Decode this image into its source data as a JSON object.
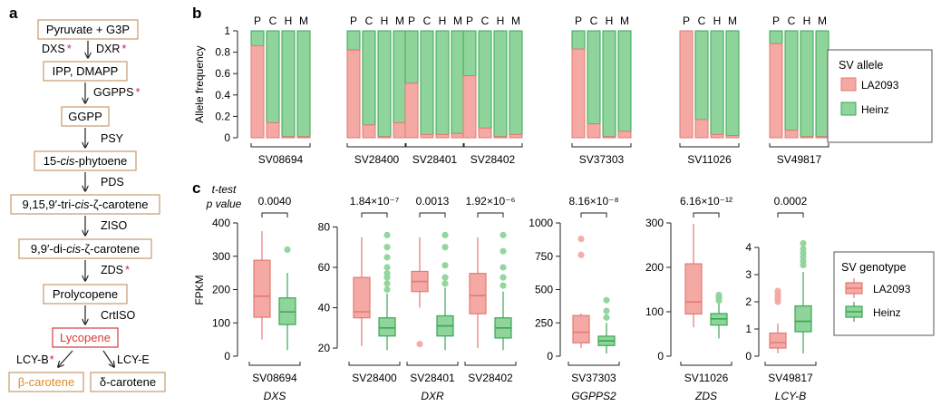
{
  "panel_labels": {
    "a": "a",
    "b": "b",
    "c": "c"
  },
  "pathway": {
    "nodes": [
      {
        "id": "pyr",
        "label": "Pyruvate + G3P",
        "style": "normal"
      },
      {
        "id": "ipp",
        "label": "IPP, DMAPP",
        "style": "normal"
      },
      {
        "id": "ggpp",
        "label": "GGPP",
        "style": "normal"
      },
      {
        "id": "phyt",
        "label_parts": [
          "15-",
          "cis",
          "-phytoene"
        ],
        "style": "normal"
      },
      {
        "id": "tri",
        "label_parts": [
          "9,15,9′-tri-",
          "cis",
          "-ζ-carotene"
        ],
        "style": "normal"
      },
      {
        "id": "di",
        "label_parts": [
          "9,9′-di-",
          "cis",
          "-ζ-carotene"
        ],
        "style": "normal"
      },
      {
        "id": "proly",
        "label": "Prolycopene",
        "style": "normal"
      },
      {
        "id": "lyc",
        "label": "Lycopene",
        "style": "red"
      },
      {
        "id": "beta",
        "label": "β-carotene",
        "style": "orange"
      },
      {
        "id": "delta",
        "label": "δ-carotene",
        "style": "normal"
      }
    ],
    "enzymes": {
      "dxs": "DXS",
      "dxr": "DXR",
      "ggpps": "GGPPS",
      "psy": "PSY",
      "pds": "PDS",
      "ziso": "ZISO",
      "zds": "ZDS",
      "crtiso": "CrtISO",
      "lcyb": "LCY-B",
      "lcye": "LCY-E"
    },
    "star": "*",
    "star_color": "#cc1f6a"
  },
  "colors": {
    "la2093": "#f4a9a4",
    "la2093_stroke": "#e27a74",
    "heinz": "#8fd49a",
    "heinz_stroke": "#3aa655",
    "lycopene_red": "#d83a3a",
    "beta_orange": "#e2892a",
    "node_border": "#c79a6e"
  },
  "allele_chart": {
    "type": "bar",
    "ylabel": "Allele frequency",
    "ylim": [
      0,
      1
    ],
    "yticks": [
      "0",
      "0.2",
      "0.4",
      "0.6",
      "0.8",
      "1"
    ],
    "tissue_labels": [
      "P",
      "C",
      "H",
      "M"
    ],
    "groups": [
      {
        "sv": "SV08694",
        "la2093": [
          0.86,
          0.14,
          0.01,
          0.01
        ]
      },
      {
        "sv": "SV28400",
        "la2093": [
          0.82,
          0.12,
          0.01,
          0.14
        ]
      },
      {
        "sv": "SV28401",
        "la2093": [
          0.51,
          0.03,
          0.03,
          0.04
        ]
      },
      {
        "sv": "SV28402",
        "la2093": [
          0.58,
          0.09,
          0.01,
          0.03
        ]
      },
      {
        "sv": "SV37303",
        "la2093": [
          0.83,
          0.13,
          0.01,
          0.06
        ]
      },
      {
        "sv": "SV11026",
        "la2093": [
          1.0,
          0.17,
          0.03,
          0.02
        ]
      },
      {
        "sv": "SV49817",
        "la2093": [
          0.88,
          0.07,
          0.01,
          0.01
        ]
      }
    ],
    "legend": {
      "title": "SV allele",
      "items": [
        "LA2093",
        "Heinz"
      ]
    }
  },
  "expression_chart": {
    "type": "box",
    "ylabel": "FPKM",
    "ttest_label": [
      "t-test",
      "p value"
    ],
    "legend": {
      "title": "SV genotype",
      "items": [
        "LA2093",
        "Heinz"
      ]
    },
    "panels": [
      {
        "id": "dxs",
        "yticks": [
          0,
          100,
          200,
          300,
          400
        ],
        "ylim": [
          0,
          400
        ],
        "gene": "DXS",
        "groups": [
          {
            "sv": "SV08694",
            "pval": "0.0040",
            "la2093": {
              "whislo": 50,
              "q1": 117,
              "med": 180,
              "q3": 288,
              "whishi": 375,
              "fliers": []
            },
            "heinz": {
              "whislo": 18,
              "q1": 95,
              "med": 133,
              "q3": 175,
              "whishi": 250,
              "fliers": [
                320
              ]
            }
          }
        ]
      },
      {
        "id": "dxr",
        "yticks": [
          20,
          40,
          60,
          80
        ],
        "ylim": [
          16,
          82
        ],
        "gene": "DXR",
        "groups": [
          {
            "sv": "SV28400",
            "pval": "1.84×10⁻⁷",
            "la2093": {
              "whislo": 21,
              "q1": 35,
              "med": 38,
              "q3": 55,
              "whishi": 75,
              "fliers": []
            },
            "heinz": {
              "whislo": 19,
              "q1": 26,
              "med": 30,
              "q3": 35,
              "whishi": 47,
              "fliers": [
                49,
                52,
                55,
                57,
                60,
                65,
                70,
                76
              ]
            }
          },
          {
            "sv": "SV28401",
            "pval": "0.0013",
            "la2093": {
              "whislo": 40,
              "q1": 48,
              "med": 53,
              "q3": 58,
              "whishi": 75,
              "fliers": [
                22
              ]
            },
            "heinz": {
              "whislo": 19,
              "q1": 26,
              "med": 31,
              "q3": 36,
              "whishi": 50,
              "fliers": [
                52,
                55,
                61,
                70,
                76
              ]
            }
          },
          {
            "sv": "SV28402",
            "pval": "1.92×10⁻⁶",
            "la2093": {
              "whislo": 20,
              "q1": 37,
              "med": 46,
              "q3": 57,
              "whishi": 75,
              "fliers": []
            },
            "heinz": {
              "whislo": 19,
              "q1": 25,
              "med": 30,
              "q3": 35,
              "whishi": 48,
              "fliers": [
                51,
                55,
                60,
                68,
                76
              ]
            }
          }
        ]
      },
      {
        "id": "ggpps",
        "yticks": [
          0,
          250,
          500,
          750,
          1000
        ],
        "ylim": [
          0,
          1000
        ],
        "gene": "GGPPS2",
        "groups": [
          {
            "sv": "SV37303",
            "pval": "8.16×10⁻⁸",
            "la2093": {
              "whislo": 60,
              "q1": 100,
              "med": 180,
              "q3": 305,
              "whishi": 320,
              "fliers": [
                760,
                880
              ]
            },
            "heinz": {
              "whislo": 20,
              "q1": 80,
              "med": 115,
              "q3": 150,
              "whishi": 250,
              "fliers": [
                290,
                340,
                420
              ]
            }
          }
        ]
      },
      {
        "id": "zds",
        "yticks": [
          0,
          100,
          200,
          300
        ],
        "ylim": [
          0,
          300
        ],
        "gene": "ZDS",
        "groups": [
          {
            "sv": "SV11026",
            "pval": "6.16×10⁻¹²",
            "la2093": {
              "whislo": 65,
              "q1": 95,
              "med": 122,
              "q3": 208,
              "whishi": 298,
              "fliers": []
            },
            "heinz": {
              "whislo": 40,
              "q1": 70,
              "med": 84,
              "q3": 96,
              "whishi": 118,
              "fliers": [
                125,
                132,
                138
              ]
            }
          }
        ]
      },
      {
        "id": "lcyb",
        "yticks": [
          0,
          1,
          2,
          3,
          4
        ],
        "ylim": [
          0,
          4.9
        ],
        "gene": "LCY-B",
        "groups": [
          {
            "sv": "SV49817",
            "pval": "0.0002",
            "la2093": {
              "whislo": 0.1,
              "q1": 0.3,
              "med": 0.5,
              "q3": 0.85,
              "whishi": 1.2,
              "fliers": [
                2.0,
                2.1,
                2.2,
                2.3,
                2.4
              ]
            },
            "heinz": {
              "whislo": 0.1,
              "q1": 0.9,
              "med": 1.28,
              "q3": 1.85,
              "whishi": 3.1,
              "fliers": [
                3.35,
                3.5,
                3.65,
                3.8,
                3.95,
                4.15
              ]
            }
          }
        ]
      }
    ]
  },
  "chart_data": [
    {
      "type": "bar",
      "ylabel": "Allele frequency",
      "ylim": [
        0,
        1
      ],
      "categories": [
        "SV08694",
        "SV28400",
        "SV28401",
        "SV28402",
        "SV37303",
        "SV11026",
        "SV49817"
      ],
      "subcategories": [
        "P",
        "C",
        "H",
        "M"
      ],
      "series": [
        {
          "name": "LA2093",
          "values": [
            [
              0.86,
              0.14,
              0.01,
              0.01
            ],
            [
              0.82,
              0.12,
              0.01,
              0.14
            ],
            [
              0.51,
              0.03,
              0.03,
              0.04
            ],
            [
              0.58,
              0.09,
              0.01,
              0.03
            ],
            [
              0.83,
              0.13,
              0.01,
              0.06
            ],
            [
              1.0,
              0.17,
              0.03,
              0.02
            ],
            [
              0.88,
              0.07,
              0.01,
              0.01
            ]
          ]
        },
        {
          "name": "Heinz",
          "values": [
            [
              0.14,
              0.86,
              0.99,
              0.99
            ],
            [
              0.18,
              0.88,
              0.99,
              0.86
            ],
            [
              0.49,
              0.97,
              0.97,
              0.96
            ],
            [
              0.42,
              0.91,
              0.99,
              0.97
            ],
            [
              0.17,
              0.87,
              0.99,
              0.94
            ],
            [
              0.0,
              0.83,
              0.97,
              0.98
            ],
            [
              0.12,
              0.93,
              0.99,
              0.99
            ]
          ]
        }
      ],
      "legend": "right"
    }
  ]
}
